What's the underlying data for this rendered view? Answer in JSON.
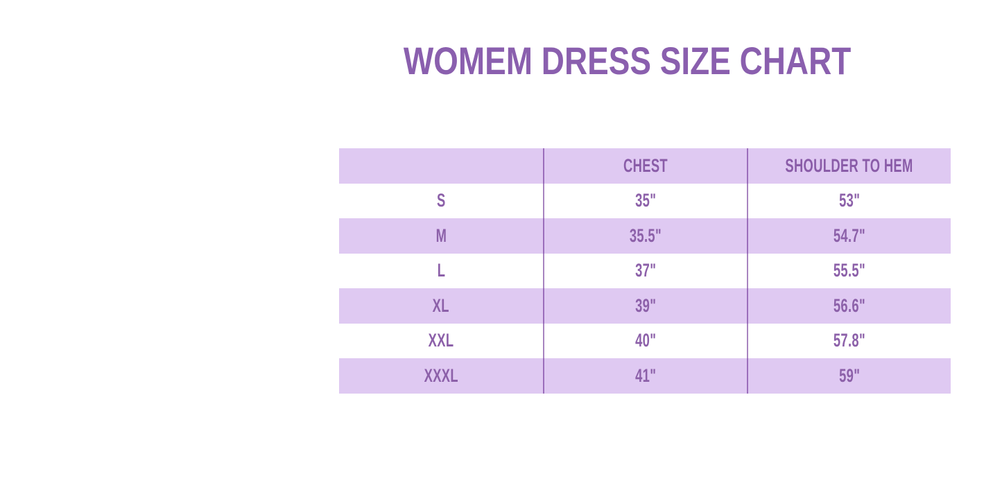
{
  "title": "WOMEM DRESS SIZE CHART",
  "colors": {
    "background": "#ffffff",
    "title_text": "#8a5fae",
    "cell_text": "#8c60a9",
    "band": "#dfc9f2",
    "divider": "#9b6ebb"
  },
  "chart_data": {
    "type": "table",
    "title": "WOMEM DRESS SIZE CHART",
    "columns": [
      "",
      "CHEST",
      "SHOULDER TO HEM"
    ],
    "rows": [
      {
        "size": "S",
        "chest": "35\"",
        "shoulder_to_hem": "53\""
      },
      {
        "size": "M",
        "chest": "35.5\"",
        "shoulder_to_hem": "54.7\""
      },
      {
        "size": "L",
        "chest": "37\"",
        "shoulder_to_hem": "55.5\""
      },
      {
        "size": "XL",
        "chest": "39\"",
        "shoulder_to_hem": "56.6\""
      },
      {
        "size": "XXL",
        "chest": "40\"",
        "shoulder_to_hem": "57.8\""
      },
      {
        "size": "XXXL",
        "chest": "41\"",
        "shoulder_to_hem": "59\""
      }
    ],
    "banded_rows": [
      "header",
      "M",
      "XL",
      "XXXL"
    ],
    "grid": "column-dividers-only",
    "legend_position": "none"
  }
}
